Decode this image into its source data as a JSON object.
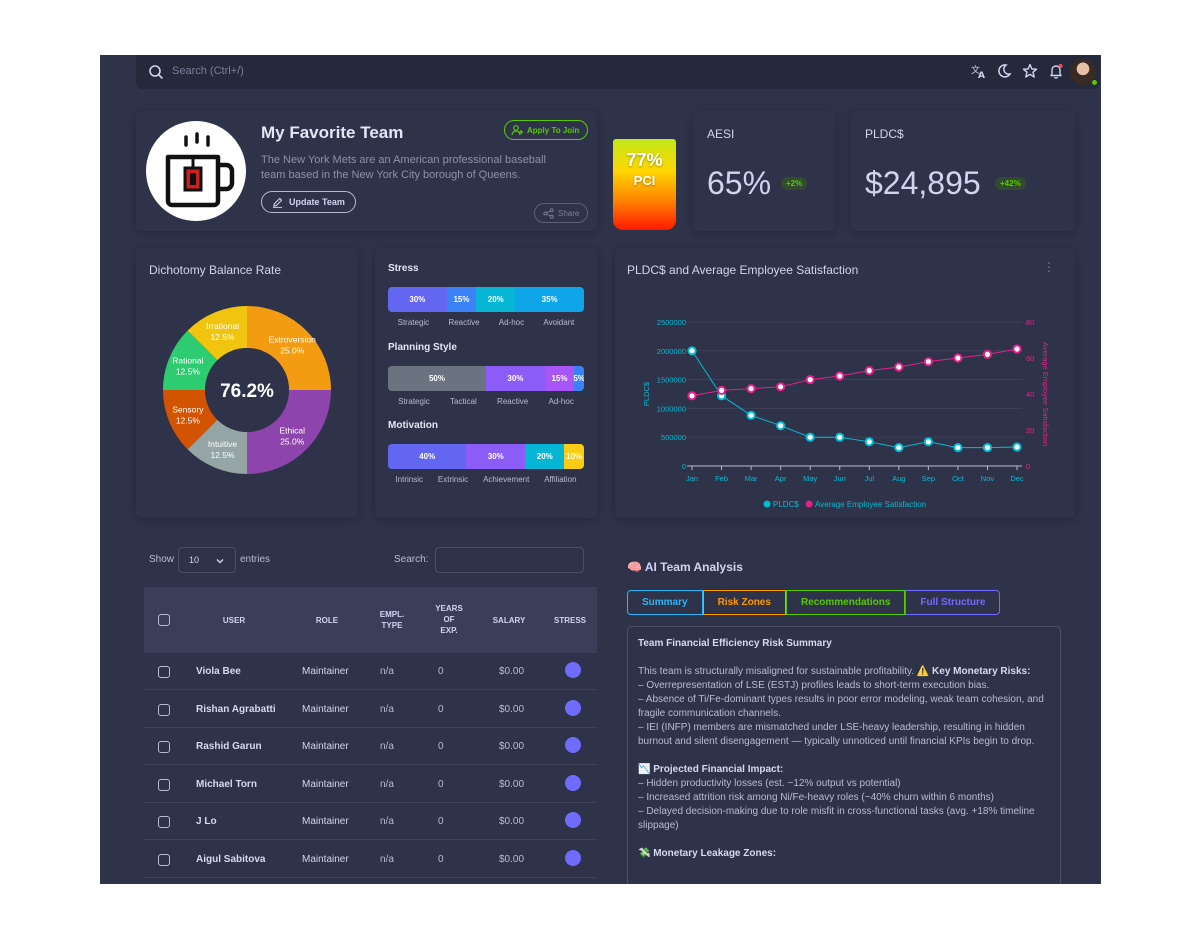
{
  "topbar": {
    "search_placeholder": "Search (Ctrl+/)",
    "icons": [
      "search-icon",
      "translate-icon",
      "moon-icon",
      "star-icon",
      "bell-icon"
    ]
  },
  "team": {
    "title": "My Favorite Team",
    "description": "The New York Mets are an American professional baseball team based in the New York City borough of Queens.",
    "apply_label": "Apply To Join",
    "update_label": "Update Team",
    "share_label": "Share"
  },
  "pci": {
    "value": "77%",
    "label": "PCI"
  },
  "kpis": [
    {
      "label": "AESI",
      "value": "65%",
      "badge": "+2%"
    },
    {
      "label": "PLDC$",
      "value": "$24,895",
      "badge": "+42%"
    }
  ],
  "dichotomy": {
    "title": "Dichotomy Balance Rate",
    "center_value": "76.2%",
    "slices": [
      {
        "name": "Extroversion",
        "value": 25.0,
        "pct": "25.0%",
        "color": "#f39c12"
      },
      {
        "name": "Ethical",
        "value": 25.0,
        "pct": "25.0%",
        "color": "#8e44ad"
      },
      {
        "name": "Intuitive",
        "value": 12.5,
        "pct": "12.5%",
        "color": "#95a5a6"
      },
      {
        "name": "Sensory",
        "value": 12.5,
        "pct": "12.5%",
        "color": "#d35400"
      },
      {
        "name": "Rational",
        "value": 12.5,
        "pct": "12.5%",
        "color": "#2ecc71"
      },
      {
        "name": "Irrational",
        "value": 12.5,
        "pct": "12.5%",
        "color": "#f1c40f"
      }
    ]
  },
  "bar_groups": [
    {
      "title": "Stress",
      "segments": [
        {
          "label": "30%",
          "value": 30,
          "color": "#6366f1"
        },
        {
          "label": "15%",
          "value": 15,
          "color": "#3b82f6"
        },
        {
          "label": "20%",
          "value": 20,
          "color": "#06b6d4"
        },
        {
          "label": "35%",
          "value": 35,
          "color": "#0ea5e9"
        }
      ],
      "labels": [
        "Strategic",
        "Reactive",
        "Ad-hoc",
        "Avoidant"
      ]
    },
    {
      "title": "Planning Style",
      "segments": [
        {
          "label": "50%",
          "value": 50,
          "color": "#6b7280"
        },
        {
          "label": "30%",
          "value": 30,
          "color": "#8b5cf6"
        },
        {
          "label": "15%",
          "value": 15,
          "color": "#a855f7"
        },
        {
          "label": "5%",
          "value": 5,
          "color": "#3b82f6"
        }
      ],
      "labels": [
        "Strategic",
        "Tactical",
        "Reactive",
        "Ad-hoc"
      ]
    },
    {
      "title": "Motivation",
      "segments": [
        {
          "label": "40%",
          "value": 40,
          "color": "#6366f1"
        },
        {
          "label": "30%",
          "value": 30,
          "color": "#8b5cf6"
        },
        {
          "label": "20%",
          "value": 20,
          "color": "#06b6d4"
        },
        {
          "label": "10%",
          "value": 10,
          "color": "#facc15"
        }
      ],
      "labels": [
        "Intrinsic",
        "Extrinsic",
        "Achievement",
        "Affiliation"
      ]
    }
  ],
  "chart_data": {
    "type": "line",
    "title": "PLDC$ and Average Employee Satisfaction",
    "categories": [
      "Jan",
      "Feb",
      "Mar",
      "Apr",
      "May",
      "Jun",
      "Jul",
      "Aug",
      "Sep",
      "Oct",
      "Nov",
      "Dec"
    ],
    "ylabel": "PLDC$",
    "y2label": "Average Employee Satisfaction",
    "ylim": [
      0,
      2500000
    ],
    "y2lim": [
      0,
      80
    ],
    "yticks": [
      "0",
      "500000",
      "1000000",
      "1500000",
      "2000000",
      "2500000"
    ],
    "y2ticks": [
      "0",
      "20",
      "40",
      "60",
      "80"
    ],
    "series": [
      {
        "name": "PLDC$",
        "axis": "left",
        "color": "#00bcd4",
        "values": [
          2000000,
          1220000,
          880000,
          700000,
          500000,
          500000,
          420000,
          320000,
          420000,
          320000,
          320000,
          330000
        ]
      },
      {
        "name": "Average Employee Satisfaction",
        "axis": "right",
        "color": "#e91e8c",
        "values": [
          39,
          42,
          43,
          44,
          48,
          50,
          53,
          55,
          58,
          60,
          62,
          65
        ]
      }
    ],
    "legend": "bottom"
  },
  "table": {
    "show_label": "Show",
    "page_size": "10",
    "entries_label": "entries",
    "search_label": "Search:",
    "columns": [
      "USER",
      "ROLE",
      "EMPL.\nTYPE",
      "YEARS\nOF\nEXP.",
      "SALARY",
      "STRESS"
    ],
    "rows": [
      {
        "user": "Viola Bee",
        "role": "Maintainer",
        "type": "n/a",
        "years": "0",
        "salary": "$0.00"
      },
      {
        "user": "Rishan Agrabatti",
        "role": "Maintainer",
        "type": "n/a",
        "years": "0",
        "salary": "$0.00"
      },
      {
        "user": "Rashid Garun",
        "role": "Maintainer",
        "type": "n/a",
        "years": "0",
        "salary": "$0.00"
      },
      {
        "user": "Michael Torn",
        "role": "Maintainer",
        "type": "n/a",
        "years": "0",
        "salary": "$0.00"
      },
      {
        "user": "J Lo",
        "role": "Maintainer",
        "type": "n/a",
        "years": "0",
        "salary": "$0.00"
      },
      {
        "user": "Aigul Sabitova",
        "role": "Maintainer",
        "type": "n/a",
        "years": "0",
        "salary": "$0.00"
      }
    ]
  },
  "ai": {
    "title": "🧠 AI Team Analysis",
    "tabs": [
      {
        "label": "Summary",
        "color": "#29b6f6"
      },
      {
        "label": "Risk Zones",
        "color": "#ff9800"
      },
      {
        "label": "Recommendations",
        "color": "#56ca00"
      },
      {
        "label": "Full Structure",
        "color": "#6f6bff"
      }
    ],
    "heading": "Team Financial Efficiency Risk Summary",
    "intro": "This team is structurally misaligned for sustainable profitability.",
    "risk_label": "⚠️ Key Monetary Risks:",
    "risks": [
      "– Overrepresentation of LSE (ESTJ) profiles leads to short-term execution bias.",
      "– Absence of Ti/Fe-dominant types results in poor error modeling, weak team cohesion, and fragile communication channels.",
      "– IEI (INFP) members are mismatched under LSE-heavy leadership, resulting in hidden burnout and silent disengagement — typically unnoticed until financial KPIs begin to drop."
    ],
    "impact_label": "📉 Projected Financial Impact:",
    "impacts": [
      "– Hidden productivity losses (est. ~12% output vs potential)",
      "– Increased attrition risk among Ni/Fe-heavy roles (~40% churn within 6 months)",
      "– Delayed decision-making due to role misfit in cross-functional tasks (avg. +18% timeline slippage)"
    ],
    "leakage_label": "💸 Monetary Leakage Zones:"
  }
}
